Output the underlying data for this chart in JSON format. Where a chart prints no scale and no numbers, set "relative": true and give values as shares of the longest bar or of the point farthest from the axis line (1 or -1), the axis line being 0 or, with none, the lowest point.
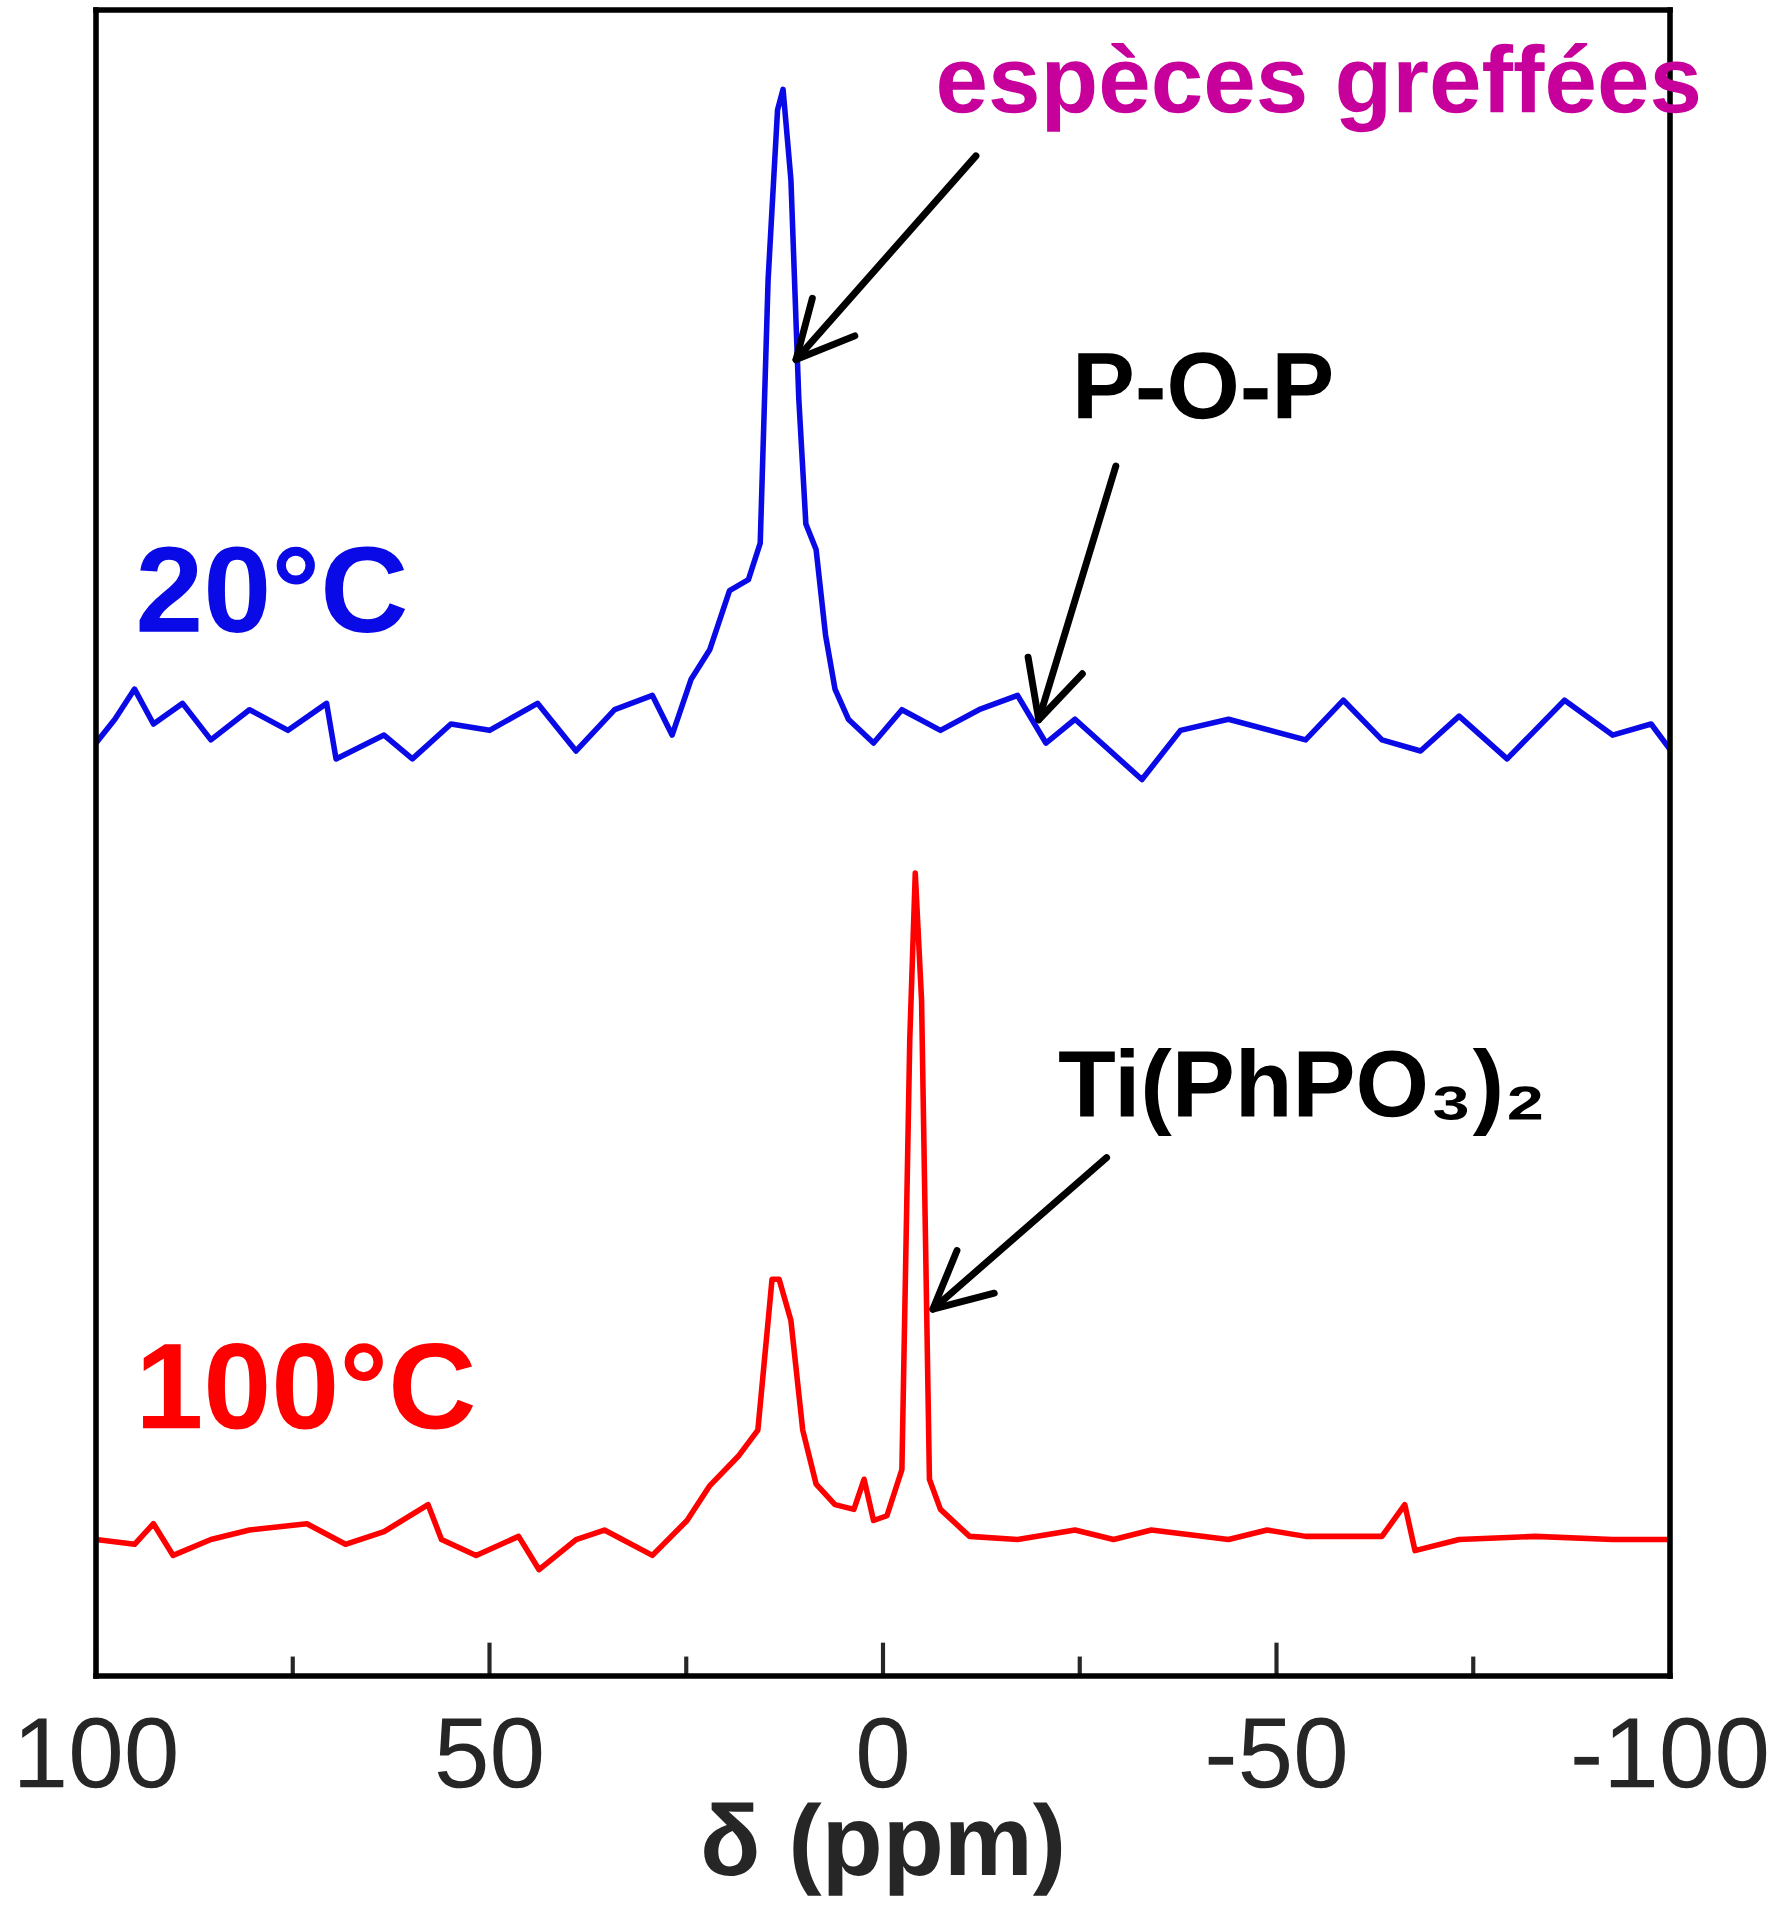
{
  "chart_data": {
    "type": "line",
    "xlabel": "δ (ppm)",
    "relative": true,
    "legend": false,
    "grid": false,
    "marker": "none",
    "line_style": "solid",
    "xlim": [
      100,
      -100
    ],
    "xticks": [
      100,
      {
        "value": 75,
        "label": null
      },
      50,
      {
        "value": 25,
        "label": null
      },
      0,
      {
        "value": -25,
        "label": null
      },
      -50,
      {
        "value": -75,
        "label": null
      },
      -100
    ],
    "series": [
      {
        "name": "20°C",
        "color": "#0a0ae6",
        "x": [
          100,
          97.6,
          95.1,
          92.7,
          89.0,
          85.4,
          80.5,
          75.6,
          70.7,
          69.5,
          63.4,
          59.8,
          54.9,
          50.0,
          43.9,
          39.0,
          34.1,
          29.3,
          26.8,
          24.4,
          22.0,
          19.5,
          17.1,
          15.6,
          14.6,
          13.4,
          12.7,
          11.7,
          10.7,
          9.8,
          8.5,
          7.3,
          6.1,
          4.4,
          1.2,
          -2.4,
          -7.3,
          -12.2,
          -17.1,
          -20.7,
          -24.4,
          -32.9,
          -37.8,
          -43.9,
          -53.7,
          -58.5,
          -63.4,
          -68.3,
          -73.2,
          -79.3,
          -86.6,
          -92.7,
          -97.6,
          -100
        ],
        "values": [
          0.588,
          0.603,
          0.622,
          0.6,
          0.613,
          0.59,
          0.609,
          0.596,
          0.613,
          0.578,
          0.593,
          0.578,
          0.6,
          0.596,
          0.613,
          0.583,
          0.609,
          0.618,
          0.593,
          0.628,
          0.647,
          0.684,
          0.691,
          0.714,
          0.88,
          0.987,
          1.0,
          0.943,
          0.805,
          0.726,
          0.71,
          0.656,
          0.622,
          0.603,
          0.588,
          0.609,
          0.596,
          0.609,
          0.618,
          0.588,
          0.603,
          0.565,
          0.596,
          0.603,
          0.59,
          0.615,
          0.59,
          0.583,
          0.605,
          0.578,
          0.615,
          0.593,
          0.6,
          0.584
        ]
      },
      {
        "name": "100°C",
        "color": "#ff0000",
        "x": [
          100,
          95.1,
          92.7,
          90.2,
          85.4,
          80.5,
          73.2,
          68.3,
          63.4,
          57.8,
          56.1,
          51.7,
          46.3,
          43.7,
          39.0,
          35.4,
          29.3,
          24.9,
          22.0,
          18.3,
          15.9,
          14.1,
          13.2,
          11.7,
          10.2,
          8.5,
          6.1,
          3.7,
          2.4,
          1.2,
          -0.5,
          -2.4,
          -3.4,
          -4.1,
          -4.9,
          -5.9,
          -7.3,
          -11.0,
          -17.1,
          -24.4,
          -29.3,
          -34.1,
          -43.9,
          -48.8,
          -53.7,
          -63.4,
          -66.3,
          -67.6,
          -73.2,
          -82.9,
          -92.7,
          -100
        ],
        "values": [
          0.086,
          0.083,
          0.096,
          0.076,
          0.086,
          0.092,
          0.096,
          0.083,
          0.091,
          0.108,
          0.086,
          0.076,
          0.088,
          0.067,
          0.086,
          0.092,
          0.076,
          0.098,
          0.12,
          0.139,
          0.155,
          0.25,
          0.25,
          0.224,
          0.155,
          0.121,
          0.108,
          0.105,
          0.124,
          0.098,
          0.101,
          0.13,
          0.401,
          0.506,
          0.426,
          0.124,
          0.105,
          0.088,
          0.086,
          0.092,
          0.086,
          0.092,
          0.086,
          0.092,
          0.088,
          0.088,
          0.108,
          0.079,
          0.086,
          0.088,
          0.086,
          0.086
        ]
      }
    ],
    "annotations": [
      {
        "text": "espèces greffées",
        "x": 11.7,
        "y": 0.826
      },
      {
        "text": "P-O-P",
        "x": -19.5,
        "y": 0.598
      },
      {
        "text": "Ti(PhPO₃)₂",
        "x": -5.6,
        "y": 0.228
      }
    ]
  }
}
